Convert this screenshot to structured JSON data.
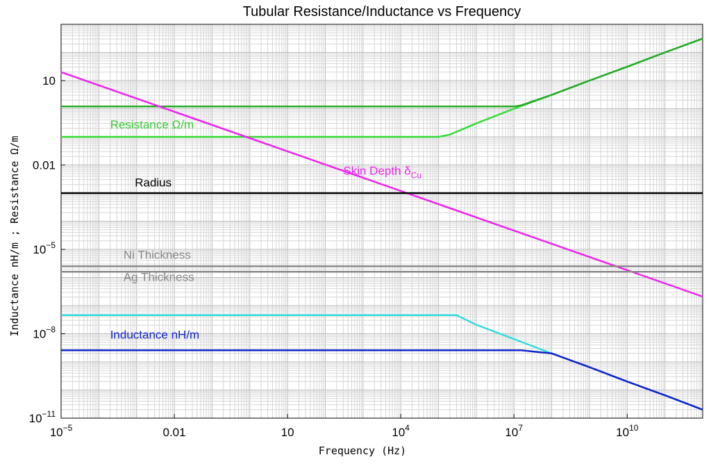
{
  "chart_data": {
    "type": "line",
    "title": "Tubular Resistance/Inductance vs Frequency",
    "xlabel": "Frequency (Hz)",
    "ylabel": "Inductance nH/m ;   Resistance Ω/m",
    "x_scale": "log",
    "y_scale": "log",
    "xlim": [
      1e-05,
      1000000000000
    ],
    "ylim": [
      1e-11,
      1000
    ],
    "grid": true,
    "x_ticks": [
      {
        "value": 1e-05,
        "base": "10",
        "exp": "−5",
        "label": ""
      },
      {
        "value": 0.01,
        "base": "",
        "exp": "",
        "label": "0.01"
      },
      {
        "value": 10,
        "base": "",
        "exp": "",
        "label": "10"
      },
      {
        "value": 10000,
        "base": "10",
        "exp": "4",
        "label": ""
      },
      {
        "value": 10000000,
        "base": "10",
        "exp": "7",
        "label": ""
      },
      {
        "value": 10000000000,
        "base": "10",
        "exp": "10",
        "label": ""
      }
    ],
    "y_ticks": [
      {
        "value": 10,
        "base": "",
        "exp": "",
        "label": "10"
      },
      {
        "value": 0.01,
        "base": "",
        "exp": "",
        "label": "0.01"
      },
      {
        "value": 1e-05,
        "base": "10",
        "exp": "−5",
        "label": ""
      },
      {
        "value": 1e-08,
        "base": "10",
        "exp": "−8",
        "label": ""
      },
      {
        "value": 1e-11,
        "base": "10",
        "exp": "−11",
        "label": ""
      }
    ],
    "series": [
      {
        "name": "Resistance Ω/m",
        "color": "#33dd33",
        "x": [
          1e-05,
          100000,
          200000,
          1000000,
          10000000,
          100000000,
          1000000000,
          10000000000,
          100000000000,
          1000000000000
        ],
        "y": [
          0.1,
          0.1,
          0.12,
          0.3,
          1.0,
          3.1,
          10,
          31,
          100,
          310
        ]
      },
      {
        "name": "",
        "color": "#22aa22",
        "x": [
          1e-05,
          10000000,
          15000000,
          100000000,
          1000000000,
          10000000000,
          100000000000,
          1000000000000
        ],
        "y": [
          1.2,
          1.2,
          1.3,
          3.1,
          10,
          31,
          100,
          310
        ]
      },
      {
        "name": "Skin Depth δCu",
        "color": "#ee22ee",
        "x": [
          1e-05,
          1000000000000
        ],
        "y": [
          20,
          2.1e-07
        ]
      },
      {
        "name": "Radius",
        "color": "#000000",
        "x": [
          1e-05,
          1000000000000
        ],
        "y": [
          0.001,
          0.001
        ]
      },
      {
        "name": "Ni Thickness",
        "color": "#888888",
        "x": [
          1e-05,
          1000000000000
        ],
        "y": [
          2.5e-06,
          2.5e-06
        ]
      },
      {
        "name": "Ag Thickness",
        "color": "#888888",
        "x": [
          1e-05,
          1000000000000
        ],
        "y": [
          1.6e-06,
          1.6e-06
        ]
      },
      {
        "name": "",
        "color": "#33dddd",
        "x": [
          1e-05,
          300000,
          1000000,
          10000000,
          100000000,
          1000000000,
          10000000000,
          100000000000,
          1000000000000
        ],
        "y": [
          4.6e-08,
          4.6e-08,
          2.1e-08,
          6.5e-09,
          2e-09,
          6.5e-10,
          2e-10,
          6.5e-11,
          2e-11
        ]
      },
      {
        "name": "Inductance nH/m",
        "color": "#1122cc",
        "x": [
          1e-05,
          15000000,
          100000000,
          1000000000,
          10000000000,
          100000000000,
          1000000000000
        ],
        "y": [
          2.6e-09,
          2.6e-09,
          2e-09,
          6.5e-10,
          2e-10,
          6.5e-11,
          2e-11
        ]
      }
    ],
    "annotations": [
      {
        "text": "Resistance Ω/m",
        "sub": "",
        "color": "#33cc33",
        "x": 0.0002,
        "y": 0.2
      },
      {
        "text": "Skin Depth δ",
        "sub": "Cu",
        "color": "#ee22ee",
        "x": 300,
        "y": 0.0045
      },
      {
        "text": "Radius",
        "sub": "",
        "color": "#000000",
        "x": 0.0009,
        "y": 0.0017
      },
      {
        "text": "Ni Thickness",
        "sub": "",
        "color": "#888888",
        "x": 0.00045,
        "y": 4.6e-06
      },
      {
        "text": "Ag Thickness",
        "sub": "",
        "color": "#888888",
        "x": 0.00045,
        "y": 7.5e-07
      },
      {
        "text": "Inductance nH/m",
        "sub": "",
        "color": "#1122cc",
        "x": 0.0002,
        "y": 6.8e-09
      }
    ]
  }
}
